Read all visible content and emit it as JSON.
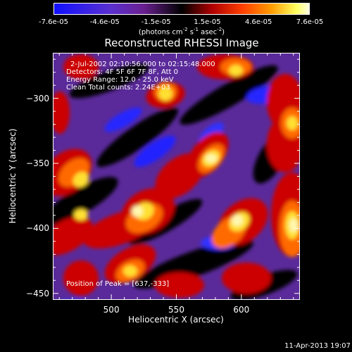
{
  "chart_data": {
    "type": "heatmap",
    "title": "Reconstructed RHESSI Image",
    "xlabel": "Heliocentric X (arcsec)",
    "ylabel": "Heliocentric Y (arcsec)",
    "xlim": [
      455,
      645
    ],
    "ylim": [
      -455,
      -265
    ],
    "xticks": [
      "500",
      "550",
      "600"
    ],
    "xtick_values": [
      500,
      550,
      600
    ],
    "yticks": [
      "-300",
      "-350",
      "-400",
      "-450"
    ],
    "ytick_values": [
      -300,
      -350,
      -400,
      -450
    ],
    "colorbar": {
      "ticks": [
        "-7.6e-05",
        "-4.6e-05",
        "-1.5e-05",
        "1.5e-05",
        "4.6e-05",
        "7.6e-05"
      ],
      "range": [
        -7.6e-05,
        7.6e-05
      ],
      "unit_parts": [
        "(photons cm",
        "-2",
        " s",
        "-1",
        " asec",
        "-2",
        ")"
      ]
    },
    "annotations": [
      "2-Jul-2002 02:10:56.000 to 02:15:48.000",
      "Detectors: 4F 5F 6F 7F 8F, Att 0",
      "Energy Range: 12.0 - 25.0 keV",
      "Clean     Total counts: 2.24E+03"
    ],
    "peak_label": "Position of Peak = [637,-333]",
    "peak": [
      637,
      -333
    ],
    "timestamp": "11-Apr-2013 19:07",
    "colors": {
      "negative": "#1010ff",
      "zero": "#000000",
      "positive_mid": "#e00000",
      "positive_max": "#ffffc0",
      "frame": "#ffffff"
    }
  }
}
